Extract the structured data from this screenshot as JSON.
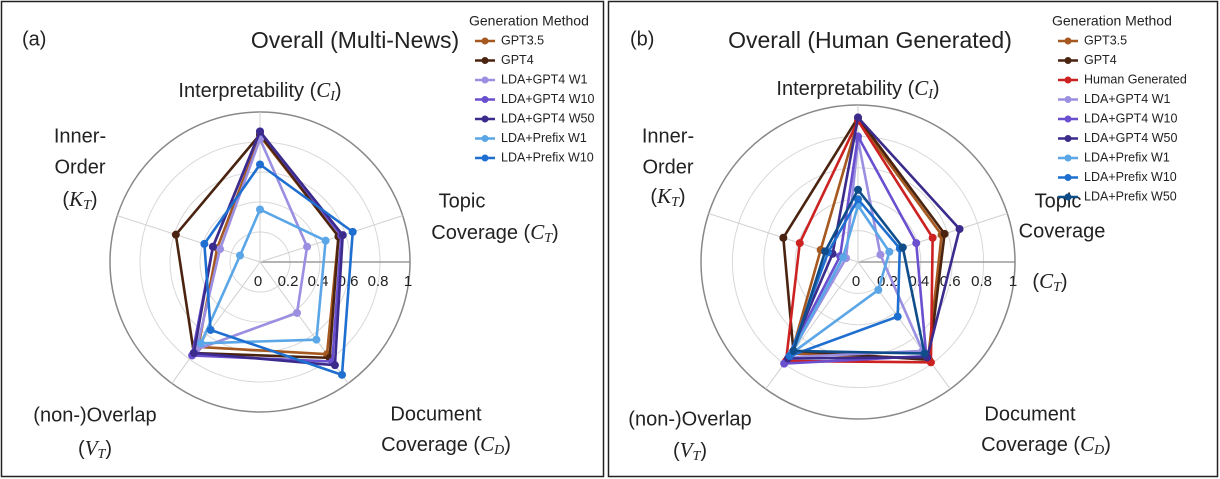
{
  "chart_data": [
    {
      "type": "radar",
      "panel": "(a)",
      "title": "Overall (Multi-News)",
      "legend_title": "Generation Method",
      "axes": [
        {
          "lines": [
            {
              "text": "Interpretability (",
              "var": "C",
              "sub": "I",
              "post": ")"
            }
          ]
        },
        {
          "lines": [
            "Topic",
            {
              "text": "Coverage (",
              "var": "C",
              "sub": "T",
              "post": ")"
            }
          ]
        },
        {
          "lines": [
            "Document",
            {
              "text": "Coverage (",
              "var": "C",
              "sub": "D",
              "post": ")"
            }
          ]
        },
        {
          "lines": [
            "(non-)Overlap",
            {
              "text": "(",
              "var": "V",
              "sub": "T",
              "post": ")"
            }
          ]
        },
        {
          "lines": [
            "Inner-",
            "Order",
            {
              "text": "(",
              "var": "K",
              "sub": "T",
              "post": ")"
            }
          ]
        }
      ],
      "rlim": [
        0,
        1
      ],
      "rticks": [
        0,
        0.2,
        0.4,
        0.6,
        0.8,
        1
      ],
      "grid": true,
      "series": [
        {
          "name": "GPT3.5",
          "color": "#a5581f",
          "values": [
            0.84,
            0.55,
            0.76,
            0.7,
            0.3
          ]
        },
        {
          "name": "GPT4",
          "color": "#4a2410",
          "values": [
            0.85,
            0.55,
            0.79,
            0.75,
            0.59
          ]
        },
        {
          "name": "LDA+GPT4 W1",
          "color": "#9a8fe0",
          "values": [
            0.82,
            0.33,
            0.42,
            0.72,
            0.28
          ]
        },
        {
          "name": "LDA+GPT4 W10",
          "color": "#6a4fcf",
          "values": [
            0.87,
            0.57,
            0.82,
            0.77,
            0.33
          ]
        },
        {
          "name": "LDA+GPT4 W50",
          "color": "#3b2b8c",
          "values": [
            0.87,
            0.58,
            0.85,
            0.75,
            0.33
          ]
        },
        {
          "name": "LDA+Prefix W1",
          "color": "#5aa6e6",
          "values": [
            0.35,
            0.46,
            0.64,
            0.67,
            0.14
          ]
        },
        {
          "name": "LDA+Prefix W10",
          "color": "#1f6fd0",
          "values": [
            0.65,
            0.65,
            0.93,
            0.56,
            0.39
          ]
        }
      ]
    },
    {
      "type": "radar",
      "panel": "(b)",
      "title": "Overall (Human Generated)",
      "legend_title": "Generation Method",
      "axes": [
        {
          "lines": [
            {
              "text": "Interpretability (",
              "var": "C",
              "sub": "I",
              "post": ")"
            }
          ]
        },
        {
          "lines": [
            "Topic",
            "Coverage",
            {
              "text": "(",
              "var": "C",
              "sub": "T",
              "post": ")"
            }
          ]
        },
        {
          "lines": [
            "Document",
            {
              "text": "Coverage (",
              "var": "C",
              "sub": "D",
              "post": ")"
            }
          ]
        },
        {
          "lines": [
            "(non-)Overlap",
            {
              "text": "(",
              "var": "V",
              "sub": "T",
              "post": ")"
            }
          ]
        },
        {
          "lines": [
            "Inner-",
            "Order",
            {
              "text": "(",
              "var": "K",
              "sub": "T",
              "post": ")"
            }
          ]
        }
      ],
      "rlim": [
        0,
        1
      ],
      "rticks": [
        0,
        0.2,
        0.4,
        0.6,
        0.8,
        1
      ],
      "grid": true,
      "series": [
        {
          "name": "GPT3.5",
          "color": "#a5581f",
          "values": [
            0.9,
            0.56,
            0.76,
            0.72,
            0.25
          ]
        },
        {
          "name": "GPT4",
          "color": "#4a2410",
          "values": [
            0.92,
            0.58,
            0.77,
            0.7,
            0.5
          ]
        },
        {
          "name": "Human Generated",
          "color": "#cc2222",
          "values": [
            0.9,
            0.5,
            0.79,
            0.78,
            0.39
          ]
        },
        {
          "name": "LDA+GPT4 W1",
          "color": "#9a8fe0",
          "values": [
            0.78,
            0.15,
            0.7,
            0.75,
            0.08
          ]
        },
        {
          "name": "LDA+GPT4 W10",
          "color": "#6a4fcf",
          "values": [
            0.8,
            0.39,
            0.74,
            0.8,
            0.12
          ]
        },
        {
          "name": "LDA+GPT4 W50",
          "color": "#3b2b8c",
          "values": [
            0.92,
            0.68,
            0.75,
            0.76,
            0.17
          ]
        },
        {
          "name": "LDA+Prefix W1",
          "color": "#5aa6e6",
          "values": [
            0.36,
            0.21,
            0.22,
            0.72,
            0.1
          ]
        },
        {
          "name": "LDA+Prefix W10",
          "color": "#1f6fd0",
          "values": [
            0.4,
            0.28,
            0.43,
            0.74,
            0.2
          ]
        },
        {
          "name": "LDA+Prefix W50",
          "color": "#0f4c8a",
          "values": [
            0.46,
            0.3,
            0.72,
            0.7,
            0.22
          ]
        }
      ]
    }
  ]
}
